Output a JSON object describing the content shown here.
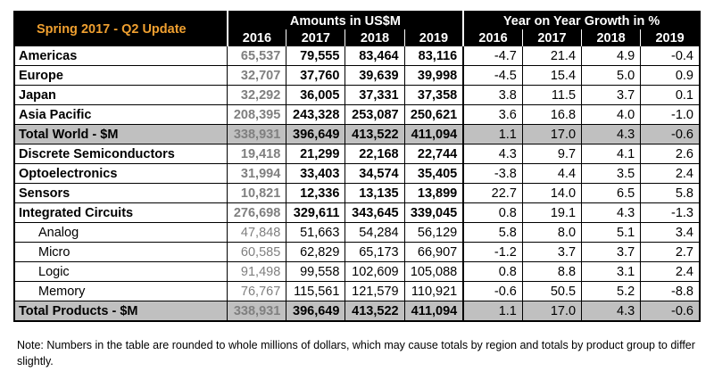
{
  "header": {
    "update_label": "Spring 2017 - Q2 Update",
    "amounts_title": "Amounts in US$M",
    "growth_title": "Year on Year Growth in %",
    "years": [
      "2016",
      "2017",
      "2018",
      "2019"
    ]
  },
  "rows": [
    {
      "label": "Americas",
      "sub": false,
      "total": false,
      "bold_values": true,
      "v2016": "65,537",
      "v2017": "79,555",
      "v2018": "83,464",
      "v2019": "83,116",
      "g2016": "-4.7",
      "g2017": "21.4",
      "g2018": "4.9",
      "g2019": "-0.4"
    },
    {
      "label": "Europe",
      "sub": false,
      "total": false,
      "bold_values": true,
      "v2016": "32,707",
      "v2017": "37,760",
      "v2018": "39,639",
      "v2019": "39,998",
      "g2016": "-4.5",
      "g2017": "15.4",
      "g2018": "5.0",
      "g2019": "0.9"
    },
    {
      "label": "Japan",
      "sub": false,
      "total": false,
      "bold_values": true,
      "v2016": "32,292",
      "v2017": "36,005",
      "v2018": "37,331",
      "v2019": "37,358",
      "g2016": "3.8",
      "g2017": "11.5",
      "g2018": "3.7",
      "g2019": "0.1"
    },
    {
      "label": "Asia Pacific",
      "sub": false,
      "total": false,
      "bold_values": true,
      "v2016": "208,395",
      "v2017": "243,328",
      "v2018": "253,087",
      "v2019": "250,621",
      "g2016": "3.6",
      "g2017": "16.8",
      "g2018": "4.0",
      "g2019": "-1.0"
    },
    {
      "label": "Total World - $M",
      "sub": false,
      "total": true,
      "bold_values": true,
      "v2016": "338,931",
      "v2017": "396,649",
      "v2018": "413,522",
      "v2019": "411,094",
      "g2016": "1.1",
      "g2017": "17.0",
      "g2018": "4.3",
      "g2019": "-0.6"
    },
    {
      "label": "Discrete Semiconductors",
      "sub": false,
      "total": false,
      "bold_values": true,
      "v2016": "19,418",
      "v2017": "21,299",
      "v2018": "22,168",
      "v2019": "22,744",
      "g2016": "4.3",
      "g2017": "9.7",
      "g2018": "4.1",
      "g2019": "2.6"
    },
    {
      "label": "Optoelectronics",
      "sub": false,
      "total": false,
      "bold_values": true,
      "v2016": "31,994",
      "v2017": "33,403",
      "v2018": "34,574",
      "v2019": "35,405",
      "g2016": "-3.8",
      "g2017": "4.4",
      "g2018": "3.5",
      "g2019": "2.4"
    },
    {
      "label": "Sensors",
      "sub": false,
      "total": false,
      "bold_values": true,
      "v2016": "10,821",
      "v2017": "12,336",
      "v2018": "13,135",
      "v2019": "13,899",
      "g2016": "22.7",
      "g2017": "14.0",
      "g2018": "6.5",
      "g2019": "5.8"
    },
    {
      "label": "Integrated Circuits",
      "sub": false,
      "total": false,
      "bold_values": true,
      "v2016": "276,698",
      "v2017": "329,611",
      "v2018": "343,645",
      "v2019": "339,045",
      "g2016": "0.8",
      "g2017": "19.1",
      "g2018": "4.3",
      "g2019": "-1.3"
    },
    {
      "label": "Analog",
      "sub": true,
      "total": false,
      "bold_values": false,
      "v2016": "47,848",
      "v2017": "51,663",
      "v2018": "54,284",
      "v2019": "56,129",
      "g2016": "5.8",
      "g2017": "8.0",
      "g2018": "5.1",
      "g2019": "3.4"
    },
    {
      "label": "Micro",
      "sub": true,
      "total": false,
      "bold_values": false,
      "v2016": "60,585",
      "v2017": "62,829",
      "v2018": "65,173",
      "v2019": "66,907",
      "g2016": "-1.2",
      "g2017": "3.7",
      "g2018": "3.7",
      "g2019": "2.7"
    },
    {
      "label": "Logic",
      "sub": true,
      "total": false,
      "bold_values": false,
      "v2016": "91,498",
      "v2017": "99,558",
      "v2018": "102,609",
      "v2019": "105,088",
      "g2016": "0.8",
      "g2017": "8.8",
      "g2018": "3.1",
      "g2019": "2.4"
    },
    {
      "label": "Memory",
      "sub": true,
      "total": false,
      "bold_values": false,
      "v2016": "76,767",
      "v2017": "115,561",
      "v2018": "121,579",
      "v2019": "110,921",
      "g2016": "-0.6",
      "g2017": "50.5",
      "g2018": "5.2",
      "g2019": "-8.8"
    },
    {
      "label": "Total Products - $M",
      "sub": false,
      "total": true,
      "bold_values": true,
      "v2016": "338,931",
      "v2017": "396,649",
      "v2018": "413,522",
      "v2019": "411,094",
      "g2016": "1.1",
      "g2017": "17.0",
      "g2018": "4.3",
      "g2019": "-0.6"
    }
  ],
  "note": "Note: Numbers in the table are rounded to whole millions of dollars, which may cause totals by region and totals by product group to differ slightly.",
  "colors": {
    "header_bg": "#000000",
    "update_label": "#f0a030",
    "total_row_bg": "#c0c0c0",
    "muted_2016": "#7f7f7f"
  }
}
